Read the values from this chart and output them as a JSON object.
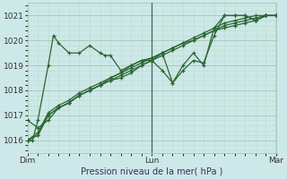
{
  "xlabel": "Pression niveau de la mer( hPa )",
  "ylim": [
    1015.5,
    1021.5
  ],
  "xlim": [
    0,
    48
  ],
  "yticks": [
    1016,
    1017,
    1018,
    1019,
    1020,
    1021
  ],
  "xtick_positions": [
    0,
    24,
    48
  ],
  "xtick_labels": [
    "Dim",
    "Lun",
    "Mar"
  ],
  "bg_color": "#cde8e8",
  "grid_major_color": "#aaccbb",
  "grid_minor_color": "#bbddcc",
  "line_color": "#2a6632",
  "line_width": 0.9,
  "series": [
    {
      "x": [
        0,
        1,
        2,
        4,
        5,
        6,
        8,
        10,
        12,
        14,
        15,
        16,
        18,
        20,
        22,
        24,
        26,
        28,
        30,
        32,
        34,
        36,
        38,
        40,
        42,
        44,
        46,
        48
      ],
      "y": [
        1016.0,
        1016.0,
        1016.8,
        1019.0,
        1020.2,
        1019.9,
        1019.5,
        1019.5,
        1019.8,
        1019.5,
        1019.4,
        1019.4,
        1018.8,
        1019.0,
        1019.2,
        1019.2,
        1018.8,
        1018.3,
        1019.0,
        1019.5,
        1019.0,
        1020.5,
        1021.0,
        1021.0,
        1021.0,
        1020.8,
        1021.0,
        1021.0
      ]
    },
    {
      "x": [
        0,
        2,
        4,
        6,
        8,
        10,
        12,
        14,
        16,
        18,
        20,
        22,
        24,
        26,
        28,
        30,
        32,
        34,
        36,
        38,
        40,
        42,
        44,
        46,
        48
      ],
      "y": [
        1016.0,
        1016.2,
        1017.0,
        1017.3,
        1017.5,
        1017.8,
        1018.0,
        1018.2,
        1018.4,
        1018.5,
        1018.7,
        1019.0,
        1019.2,
        1019.5,
        1019.7,
        1019.9,
        1020.0,
        1020.2,
        1020.4,
        1020.5,
        1020.6,
        1020.7,
        1020.8,
        1021.0,
        1021.0
      ]
    },
    {
      "x": [
        0,
        2,
        4,
        6,
        8,
        10,
        12,
        14,
        16,
        18,
        20,
        22,
        24,
        26,
        28,
        30,
        32,
        34,
        36,
        38,
        40,
        42,
        44,
        46,
        48
      ],
      "y": [
        1016.0,
        1016.2,
        1017.0,
        1017.3,
        1017.5,
        1017.8,
        1018.0,
        1018.2,
        1018.5,
        1018.7,
        1019.0,
        1019.2,
        1019.3,
        1019.5,
        1018.3,
        1018.8,
        1019.2,
        1019.1,
        1020.2,
        1021.0,
        1021.0,
        1021.0,
        1020.8,
        1021.0,
        1021.0
      ]
    },
    {
      "x": [
        0,
        2,
        4,
        6,
        8,
        10,
        12,
        14,
        16,
        18,
        20,
        22,
        24,
        26,
        28,
        30,
        32,
        34,
        36,
        38,
        40,
        42,
        44,
        46,
        48
      ],
      "y": [
        1016.0,
        1016.3,
        1017.1,
        1017.4,
        1017.6,
        1017.9,
        1018.1,
        1018.3,
        1018.5,
        1018.7,
        1018.9,
        1019.1,
        1019.3,
        1019.5,
        1019.7,
        1019.9,
        1020.1,
        1020.3,
        1020.5,
        1020.7,
        1020.8,
        1020.9,
        1021.0,
        1021.0,
        1021.0
      ]
    },
    {
      "x": [
        0,
        2,
        4,
        6,
        8,
        10,
        12,
        14,
        16,
        18,
        20,
        22,
        24,
        26,
        28,
        30,
        32,
        34,
        36,
        38,
        40,
        42,
        44,
        46,
        48
      ],
      "y": [
        1016.8,
        1016.5,
        1016.8,
        1017.3,
        1017.5,
        1017.8,
        1018.0,
        1018.2,
        1018.4,
        1018.6,
        1018.8,
        1019.0,
        1019.2,
        1019.4,
        1019.6,
        1019.8,
        1020.0,
        1020.2,
        1020.4,
        1020.6,
        1020.7,
        1020.8,
        1020.9,
        1021.0,
        1021.0
      ]
    }
  ]
}
